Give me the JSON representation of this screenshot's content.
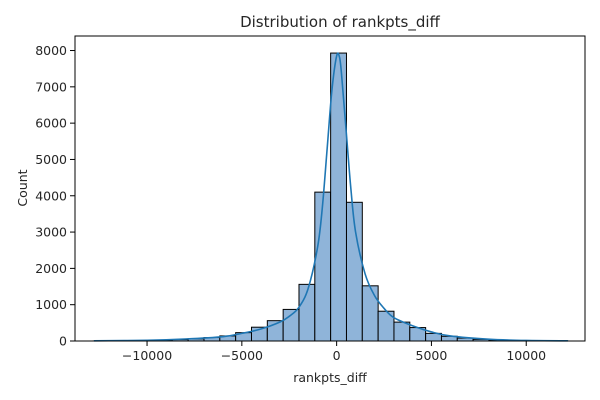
{
  "chart_data": {
    "type": "bar",
    "title": "Distribution of rankpts_diff",
    "xlabel": "rankpts_diff",
    "ylabel": "Count",
    "xlim": [
      -13800,
      13100
    ],
    "ylim": [
      0,
      8400
    ],
    "xticks": [
      -10000,
      -5000,
      0,
      5000,
      10000
    ],
    "xtick_labels": [
      "−10000",
      "−5000",
      "0",
      "5000",
      "10000"
    ],
    "yticks": [
      0,
      1000,
      2000,
      3000,
      4000,
      5000,
      6000,
      7000,
      8000
    ],
    "ytick_labels": [
      "0",
      "1000",
      "2000",
      "3000",
      "4000",
      "5000",
      "6000",
      "7000",
      "8000"
    ],
    "grid": false,
    "bin_edges": [
      -12841,
      -12006,
      -11171,
      -10336,
      -9501,
      -8666,
      -7831,
      -6996,
      -6161,
      -5326,
      -4491,
      -3656,
      -2821,
      -1986,
      -1151,
      -316,
      519,
      1354,
      2189,
      3024,
      3859,
      4694,
      5529,
      6364,
      7199,
      8034,
      8869,
      9704,
      10539,
      11374,
      12209
    ],
    "counts": [
      2,
      3,
      5,
      12,
      22,
      40,
      60,
      95,
      140,
      230,
      380,
      560,
      870,
      1560,
      4100,
      7930,
      3820,
      1520,
      820,
      520,
      370,
      210,
      130,
      80,
      45,
      25,
      12,
      7,
      3,
      2
    ],
    "kde_x": [
      -12800,
      -10000,
      -8000,
      -6000,
      -5000,
      -4000,
      -3000,
      -2500,
      -2000,
      -1500,
      -1000,
      -750,
      -500,
      -250,
      0,
      150,
      250,
      500,
      750,
      1000,
      1500,
      2000,
      2500,
      3000,
      4000,
      5000,
      6000,
      8000,
      10000,
      12200
    ],
    "kde_y": [
      5,
      20,
      55,
      120,
      210,
      330,
      520,
      680,
      920,
      1450,
      2600,
      3700,
      5300,
      6900,
      7850,
      7820,
      7400,
      5800,
      4200,
      3000,
      1850,
      1250,
      900,
      650,
      420,
      250,
      140,
      50,
      15,
      5
    ],
    "bar_color": "#8fb4d9",
    "bar_edge": "#000000",
    "line_color": "#1f77b4"
  }
}
